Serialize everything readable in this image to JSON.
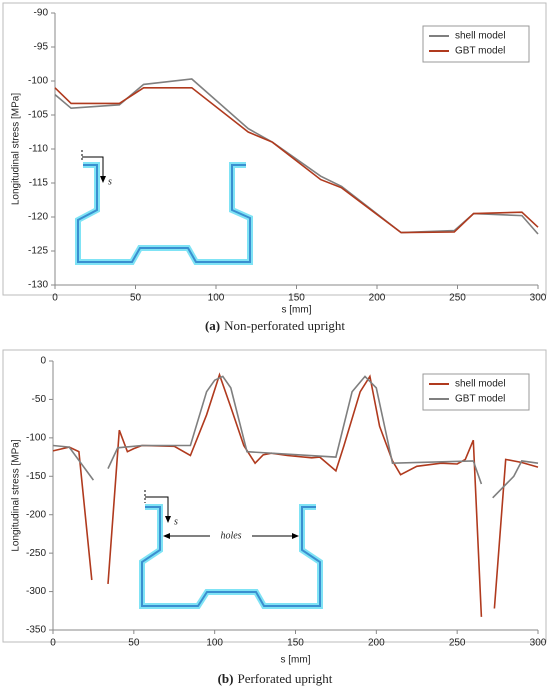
{
  "chart_data": [
    {
      "type": "line",
      "caption_label": "(a)",
      "caption": "Non-perforated upright",
      "x_label": "s [mm]",
      "y_label": "Longitudinal stress [MPa]",
      "xlim": [
        0,
        300
      ],
      "xticks": [
        0,
        50,
        100,
        150,
        200,
        250,
        300
      ],
      "ylim": [
        -130,
        -90
      ],
      "yticks": [
        -130,
        -125,
        -120,
        -115,
        -110,
        -105,
        -100,
        -95,
        -90
      ],
      "grid": false,
      "legend": "top-right",
      "annotations": [
        "s"
      ],
      "series": [
        {
          "name": "shell model",
          "color": "#7f7f7f",
          "x": [
            0,
            10,
            40,
            55,
            85,
            120,
            135,
            165,
            178,
            215,
            248,
            260,
            290,
            300
          ],
          "values": [
            -102,
            -104,
            -103.5,
            -100.5,
            -99.7,
            -107,
            -109,
            -114,
            -115.5,
            -122.3,
            -122,
            -119.5,
            -119.8,
            -122.5
          ]
        },
        {
          "name": "GBT model",
          "color": "#b03a1e",
          "x": [
            0,
            10,
            40,
            55,
            85,
            120,
            135,
            165,
            178,
            215,
            248,
            260,
            290,
            300
          ],
          "values": [
            -101,
            -103.3,
            -103.3,
            -101,
            -101,
            -107.5,
            -109,
            -114.5,
            -115.7,
            -122.3,
            -122.2,
            -119.5,
            -119.3,
            -121.5
          ]
        }
      ]
    },
    {
      "type": "line",
      "caption_label": "(b)",
      "caption": "Perforated upright",
      "x_label": "s [mm]",
      "y_label": "Longitudinal stress [MPa]",
      "xlim": [
        0,
        300
      ],
      "xticks": [
        0,
        50,
        100,
        150,
        200,
        250,
        300
      ],
      "ylim": [
        -350,
        0
      ],
      "yticks": [
        -350,
        -300,
        -250,
        -200,
        -150,
        -100,
        -50,
        0
      ],
      "grid": false,
      "legend": "top-right",
      "annotations": [
        "s",
        "holes"
      ],
      "series": [
        {
          "name": "shell model",
          "color": "#b03a1e",
          "x": [
            0,
            10,
            16,
            24,
            null,
            34,
            41,
            46,
            50,
            55,
            75,
            85,
            95,
            103,
            110,
            118,
            125,
            130,
            135,
            145,
            160,
            165,
            175,
            180,
            190,
            196,
            202,
            210,
            215,
            225,
            240,
            250,
            255,
            260,
            265,
            null,
            273,
            280,
            290,
            300
          ],
          "values": [
            -117,
            -112,
            -118,
            -285,
            null,
            -290,
            -90,
            -118,
            -114,
            -110,
            -111,
            -123,
            -70,
            -18,
            -60,
            -110,
            -133,
            -122,
            -120,
            -123,
            -126,
            -125,
            -143,
            -110,
            -40,
            -20,
            -85,
            -130,
            -148,
            -137,
            -133,
            -134,
            -128,
            -103,
            -333,
            null,
            -322,
            -128,
            -132,
            -138
          ]
        },
        {
          "name": "GBT model",
          "color": "#7f7f7f",
          "x": [
            0,
            10,
            25,
            null,
            34,
            40,
            55,
            85,
            95,
            100,
            105,
            110,
            120,
            175,
            185,
            193,
            200,
            210,
            260,
            265,
            null,
            272,
            285,
            290,
            300
          ],
          "values": [
            -110,
            -112,
            -155,
            null,
            -140,
            -113,
            -110,
            -110,
            -40,
            -25,
            -20,
            -35,
            -118,
            -125,
            -40,
            -20,
            -35,
            -133,
            -130,
            -160,
            null,
            -178,
            -150,
            -130,
            -133
          ]
        }
      ]
    }
  ]
}
